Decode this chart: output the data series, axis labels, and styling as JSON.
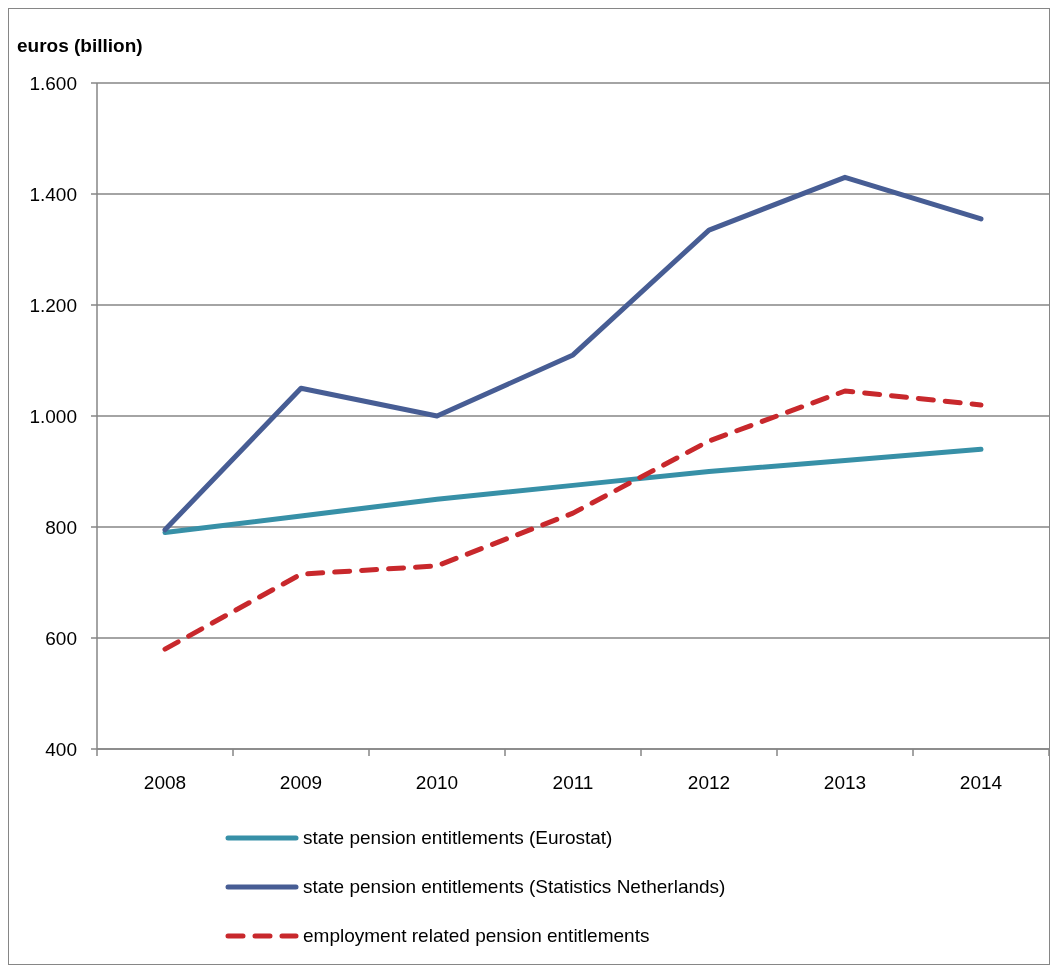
{
  "chart_data": {
    "type": "line",
    "ylabel": "euros (billion)",
    "categories": [
      "2008",
      "2009",
      "2010",
      "2011",
      "2012",
      "2013",
      "2014"
    ],
    "series": [
      {
        "name": "state pension entitlements (Eurostat)",
        "color": "#3790a7",
        "values": [
          790,
          820,
          850,
          875,
          900,
          920,
          940
        ]
      },
      {
        "name": "state pension entitlements (Statistics Netherlands)",
        "color": "#475d94",
        "values": [
          795,
          1050,
          1000,
          1110,
          1335,
          1430,
          1355
        ]
      },
      {
        "name": "employment related pension entitlements",
        "color": "#c8282c",
        "values": [
          580,
          715,
          730,
          825,
          955,
          1045,
          1020
        ],
        "line_style": "dashed"
      }
    ],
    "ylim": [
      400,
      1600
    ],
    "yticks": [
      400,
      600,
      800,
      {
        "value": 1000,
        "label": "1.000"
      },
      {
        "value": 1200,
        "label": "1.200"
      },
      {
        "value": 1400,
        "label": "1.400"
      },
      {
        "value": 1600,
        "label": "1.600"
      }
    ],
    "grid": "y",
    "legend": "bottom",
    "marker": "none",
    "line_style": "solid"
  }
}
